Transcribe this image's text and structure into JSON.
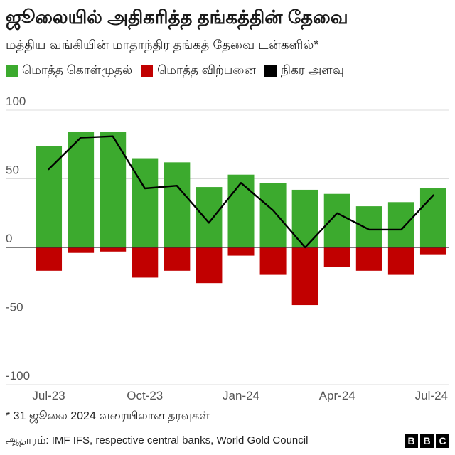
{
  "title": "ஜூலையில் அதிகரித்த தங்கத்தின் தேவை",
  "subtitle": "மத்திய வங்கியின் மாதாந்திர தங்கத் தேவை டன்களில்*",
  "footnote": "* 31 ஜூலை 2024 வரையிலான தரவுகள்",
  "source": "ஆதாரம்: IMF IFS, respective central banks, World Gold Council",
  "logo": {
    "letters": [
      "B",
      "B",
      "C"
    ]
  },
  "chart_data": {
    "type": "bar",
    "categories": [
      "Jul-23",
      "",
      "",
      "Oct-23",
      "",
      "",
      "Jan-24",
      "",
      "",
      "Apr-24",
      "",
      "",
      "Jul-24"
    ],
    "series": [
      {
        "name": "மொத்த கொள்முதல்",
        "type": "bar",
        "color": "#3caa2e",
        "values": [
          74,
          84,
          84,
          65,
          62,
          44,
          53,
          47,
          42,
          39,
          30,
          33,
          43
        ]
      },
      {
        "name": "மொத்த விற்பனை",
        "type": "bar",
        "color": "#c10000",
        "values": [
          -17,
          -4,
          -3,
          -22,
          -17,
          -26,
          -6,
          -20,
          -42,
          -14,
          -17,
          -20,
          -5
        ]
      },
      {
        "name": "நிகர அளவு",
        "type": "line",
        "color": "#000000",
        "values": [
          57,
          80,
          81,
          43,
          45,
          18,
          47,
          27,
          0,
          25,
          13,
          13,
          38
        ]
      }
    ],
    "y_ticks": [
      100,
      50,
      0,
      -50,
      -100
    ],
    "ylim": [
      -100,
      100
    ],
    "grid": true,
    "legend_position": "top-left"
  }
}
